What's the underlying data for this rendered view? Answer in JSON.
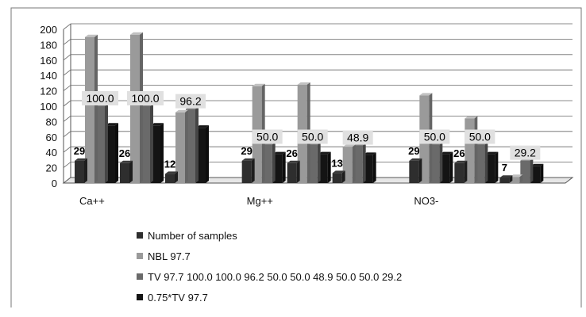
{
  "chart_data": {
    "type": "bar",
    "categories": [
      "Ca++",
      "Mg++",
      "NO3-"
    ],
    "groups_per_category": 3,
    "series": [
      {
        "name": "Number of samples",
        "values": [
          [
            29,
            26,
            12
          ],
          [
            29,
            26,
            13
          ],
          [
            29,
            26,
            7
          ]
        ],
        "color": "#2e2e2e"
      },
      {
        "name": "NBL 97.7",
        "values": [
          [
            190,
            193,
            92
          ],
          [
            126,
            128,
            47
          ],
          [
            114,
            84,
            8
          ]
        ],
        "color": "#9a9a9a"
      },
      {
        "name": "TV 97.7 100.0 100.0 96.2 50.0 50.0 48.9 50.0 50.0 29.2",
        "values": [
          [
            100.0,
            100.0,
            96.2
          ],
          [
            50.0,
            50.0,
            48.9
          ],
          [
            50.0,
            50.0,
            29.2
          ]
        ],
        "color": "#6a6a6a"
      },
      {
        "name": "0.75*TV 97.7",
        "values": [
          [
            75,
            75,
            72
          ],
          [
            37.5,
            37.5,
            36.7
          ],
          [
            37.5,
            37.5,
            21.9
          ]
        ],
        "color": "#141414"
      }
    ],
    "data_labels": {
      "number_of_samples": [
        [
          "29",
          "26",
          "12"
        ],
        [
          "29",
          "26",
          "13"
        ],
        [
          "29",
          "26",
          "7"
        ]
      ],
      "tv": [
        [
          "100.0",
          "100.0",
          "96.2"
        ],
        [
          "50.0",
          "50.0",
          "48.9"
        ],
        [
          "50.0",
          "50.0",
          "29.2"
        ]
      ]
    },
    "y_ticks": [
      "0",
      "20",
      "40",
      "60",
      "80",
      "100",
      "120",
      "140",
      "160",
      "180",
      "200"
    ],
    "ylim": [
      0,
      200
    ],
    "grid": true,
    "legend_placement": "bottom"
  }
}
